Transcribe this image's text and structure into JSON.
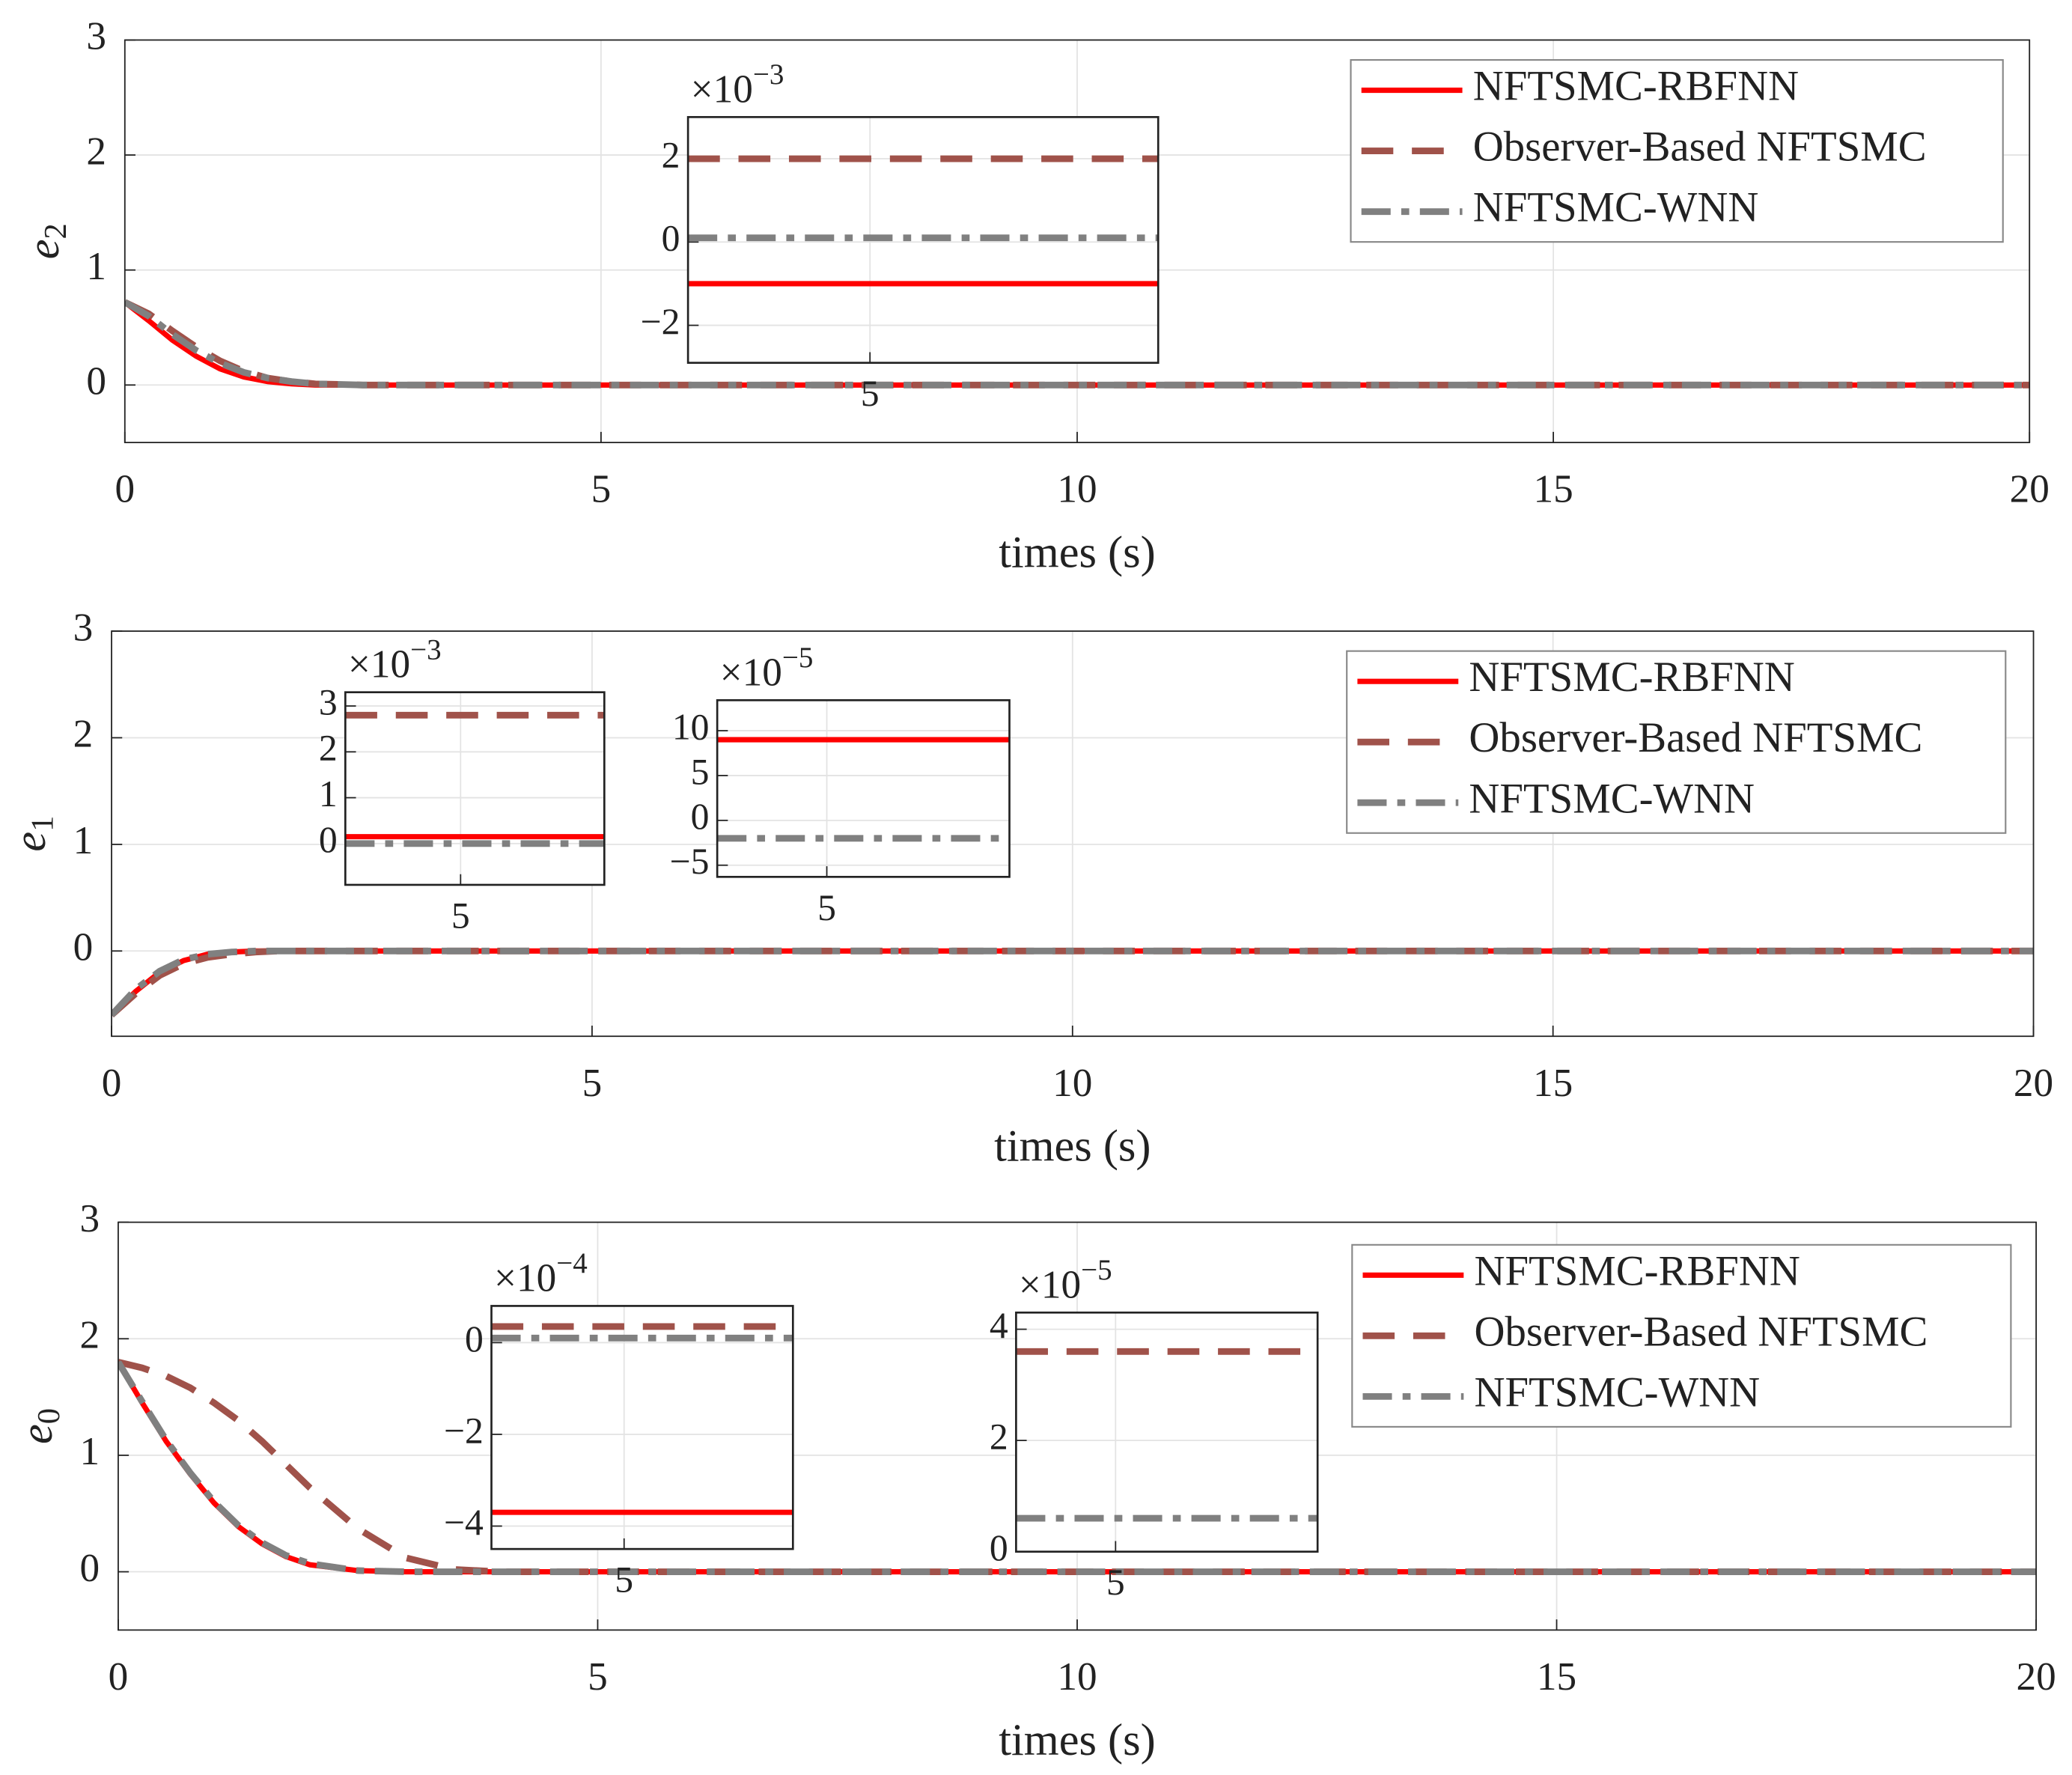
{
  "chart_data": [
    {
      "type": "line",
      "ylabel": "e",
      "ylabel_sub": "2",
      "xlabel": "times (s)",
      "xlim": [
        0,
        20
      ],
      "ylim": [
        -0.5,
        3
      ],
      "xticks": [
        0,
        5,
        10,
        15,
        20
      ],
      "yticks": [
        0,
        1,
        2,
        3
      ],
      "grid": true,
      "legend": "northeast",
      "x": [
        0,
        0.25,
        0.5,
        0.75,
        1,
        1.25,
        1.5,
        1.75,
        2,
        2.5,
        3,
        5,
        10,
        15,
        20
      ],
      "series": [
        {
          "name": "NFTSMC-RBFNN",
          "color": "#ff0000",
          "dash": "solid",
          "values": [
            0.72,
            0.56,
            0.39,
            0.25,
            0.14,
            0.07,
            0.03,
            0.01,
            0,
            0,
            0,
            0,
            0,
            0,
            0
          ]
        },
        {
          "name": "Observer-Based NFTSMC",
          "color": "#a0524a",
          "dash": "dashed",
          "values": [
            0.72,
            0.62,
            0.47,
            0.33,
            0.21,
            0.12,
            0.06,
            0.03,
            0.01,
            0,
            0,
            0,
            0,
            0,
            0
          ]
        },
        {
          "name": "NFTSMC-WNN",
          "color": "#808080",
          "dash": "dashdot",
          "values": [
            0.72,
            0.6,
            0.44,
            0.3,
            0.19,
            0.11,
            0.06,
            0.03,
            0.01,
            0,
            0,
            0,
            0,
            0,
            0
          ]
        }
      ],
      "insets": [
        {
          "type": "line",
          "exponent_base": "×10",
          "exponent_power": "−3",
          "xlim": [
            4.226,
            6.226
          ],
          "ylim": [
            -2.9,
            3
          ],
          "xticks": [
            5
          ],
          "yticks": [
            {
              "value": -2,
              "label": "−2"
            },
            0,
            2
          ],
          "grid": true,
          "series": [
            {
              "color": "#ff0000",
              "dash": "solid",
              "x": [
                4.226,
                6.226
              ],
              "values": [
                -1,
                -1
              ]
            },
            {
              "color": "#a0524a",
              "dash": "dashed",
              "x": [
                4.226,
                6.226
              ],
              "values": [
                2,
                2
              ]
            },
            {
              "color": "#808080",
              "dash": "dashdot",
              "x": [
                4.226,
                6.226
              ],
              "values": [
                0.1,
                0.1
              ]
            }
          ]
        }
      ]
    },
    {
      "type": "line",
      "ylabel": "e",
      "ylabel_sub": "1",
      "xlabel": "times (s)",
      "xlim": [
        0,
        20
      ],
      "ylim": [
        -0.8,
        3
      ],
      "xticks": [
        0,
        5,
        10,
        15,
        20
      ],
      "yticks": [
        0,
        1,
        2,
        3
      ],
      "grid": true,
      "legend": "northeast",
      "x": [
        0,
        0.25,
        0.5,
        0.75,
        1,
        1.25,
        1.5,
        1.75,
        2,
        2.5,
        3,
        5,
        10,
        15,
        20
      ],
      "series": [
        {
          "name": "NFTSMC-RBFNN",
          "color": "#ff0000",
          "dash": "solid",
          "values": [
            -0.6,
            -0.38,
            -0.2,
            -0.09,
            -0.03,
            -0.01,
            0,
            0,
            0,
            0,
            0,
            0,
            0,
            0,
            0
          ]
        },
        {
          "name": "Observer-Based NFTSMC",
          "color": "#a0524a",
          "dash": "dashed",
          "values": [
            -0.6,
            -0.4,
            -0.23,
            -0.12,
            -0.06,
            -0.03,
            -0.01,
            0,
            0,
            0,
            0,
            0,
            0,
            0,
            0
          ]
        },
        {
          "name": "NFTSMC-WNN",
          "color": "#808080",
          "dash": "dashdot",
          "values": [
            -0.6,
            -0.36,
            -0.19,
            -0.08,
            -0.03,
            -0.01,
            0,
            0,
            0,
            0,
            0,
            0,
            0,
            0,
            0
          ]
        }
      ],
      "insets": [
        {
          "type": "line",
          "exponent_base": "×10",
          "exponent_power": "−3",
          "xlim": [
            4.11,
            6.11
          ],
          "ylim": [
            -0.9,
            3.3
          ],
          "xticks": [
            5
          ],
          "yticks": [
            0,
            1,
            2,
            3
          ],
          "grid": true,
          "series": [
            {
              "color": "#ff0000",
              "dash": "solid",
              "x": [
                4.11,
                6.11
              ],
              "values": [
                0.15,
                0.15
              ]
            },
            {
              "color": "#a0524a",
              "dash": "dashed",
              "x": [
                4.11,
                6.11
              ],
              "values": [
                2.8,
                2.8
              ]
            },
            {
              "color": "#808080",
              "dash": "dashdot",
              "x": [
                4.11,
                6.11
              ],
              "values": [
                0,
                0
              ]
            }
          ]
        },
        {
          "type": "line",
          "exponent_base": "×10",
          "exponent_power": "−5",
          "xlim": [
            4.25,
            6.25
          ],
          "ylim": [
            -6.3,
            13.4
          ],
          "xticks": [
            5
          ],
          "yticks": [
            {
              "value": -5,
              "label": "−5"
            },
            0,
            5,
            10
          ],
          "grid": true,
          "series": [
            {
              "color": "#ff0000",
              "dash": "solid",
              "x": [
                4.25,
                6.25
              ],
              "values": [
                9,
                9
              ]
            },
            {
              "color": "#808080",
              "dash": "dashdot",
              "x": [
                4.25,
                6.25
              ],
              "values": [
                -2,
                -2
              ]
            }
          ]
        }
      ]
    },
    {
      "type": "line",
      "ylabel": "e",
      "ylabel_sub": "0",
      "xlabel": "times (s)",
      "xlim": [
        0,
        20
      ],
      "ylim": [
        -0.5,
        3
      ],
      "xticks": [
        0,
        5,
        10,
        15,
        20
      ],
      "yticks": [
        0,
        1,
        2,
        3
      ],
      "grid": true,
      "legend": "northeast",
      "x": [
        0,
        0.25,
        0.5,
        0.75,
        1,
        1.25,
        1.5,
        1.75,
        2,
        2.5,
        3,
        3.5,
        4,
        5,
        10,
        15,
        20
      ],
      "series": [
        {
          "name": "NFTSMC-RBFNN",
          "color": "#ff0000",
          "dash": "solid",
          "values": [
            1.8,
            1.45,
            1.12,
            0.84,
            0.59,
            0.39,
            0.24,
            0.13,
            0.06,
            0.01,
            0,
            0,
            0,
            0,
            0,
            0,
            0
          ]
        },
        {
          "name": "Observer-Based NFTSMC",
          "color": "#a0524a",
          "dash": "dashed",
          "values": [
            1.8,
            1.75,
            1.68,
            1.58,
            1.45,
            1.3,
            1.12,
            0.92,
            0.72,
            0.37,
            0.12,
            0.02,
            0,
            0,
            0,
            0,
            0
          ]
        },
        {
          "name": "NFTSMC-WNN",
          "color": "#808080",
          "dash": "dashdot",
          "values": [
            1.8,
            1.46,
            1.13,
            0.85,
            0.6,
            0.4,
            0.25,
            0.14,
            0.07,
            0.01,
            0,
            0,
            0,
            0,
            0,
            0,
            0
          ]
        }
      ],
      "insets": [
        {
          "type": "line",
          "exponent_base": "×10",
          "exponent_power": "−4",
          "xlim": [
            4.12,
            6.12
          ],
          "ylim": [
            -4.5,
            0.8
          ],
          "xticks": [
            5
          ],
          "yticks": [
            {
              "value": -4,
              "label": "−4"
            },
            {
              "value": -2,
              "label": "−2"
            },
            0
          ],
          "grid": true,
          "series": [
            {
              "color": "#ff0000",
              "dash": "solid",
              "x": [
                4.12,
                6.12
              ],
              "values": [
                -3.7,
                -3.7
              ]
            },
            {
              "color": "#a0524a",
              "dash": "dashed",
              "x": [
                4.12,
                6.12
              ],
              "values": [
                0.35,
                0.35
              ]
            },
            {
              "color": "#808080",
              "dash": "dashdot",
              "x": [
                4.12,
                6.12
              ],
              "values": [
                0.1,
                0.1
              ]
            }
          ]
        },
        {
          "type": "line",
          "exponent_base": "×10",
          "exponent_power": "−5",
          "xlim": [
            4.34,
            6.34
          ],
          "ylim": [
            0,
            4.3
          ],
          "xticks": [
            5
          ],
          "yticks": [
            0,
            2,
            4
          ],
          "grid": true,
          "series": [
            {
              "color": "#a0524a",
              "dash": "dashed",
              "x": [
                4.34,
                6.34
              ],
              "values": [
                3.6,
                3.6
              ]
            },
            {
              "color": "#808080",
              "dash": "dashdot",
              "x": [
                4.34,
                6.34
              ],
              "values": [
                0.6,
                0.6
              ]
            }
          ]
        }
      ]
    }
  ]
}
